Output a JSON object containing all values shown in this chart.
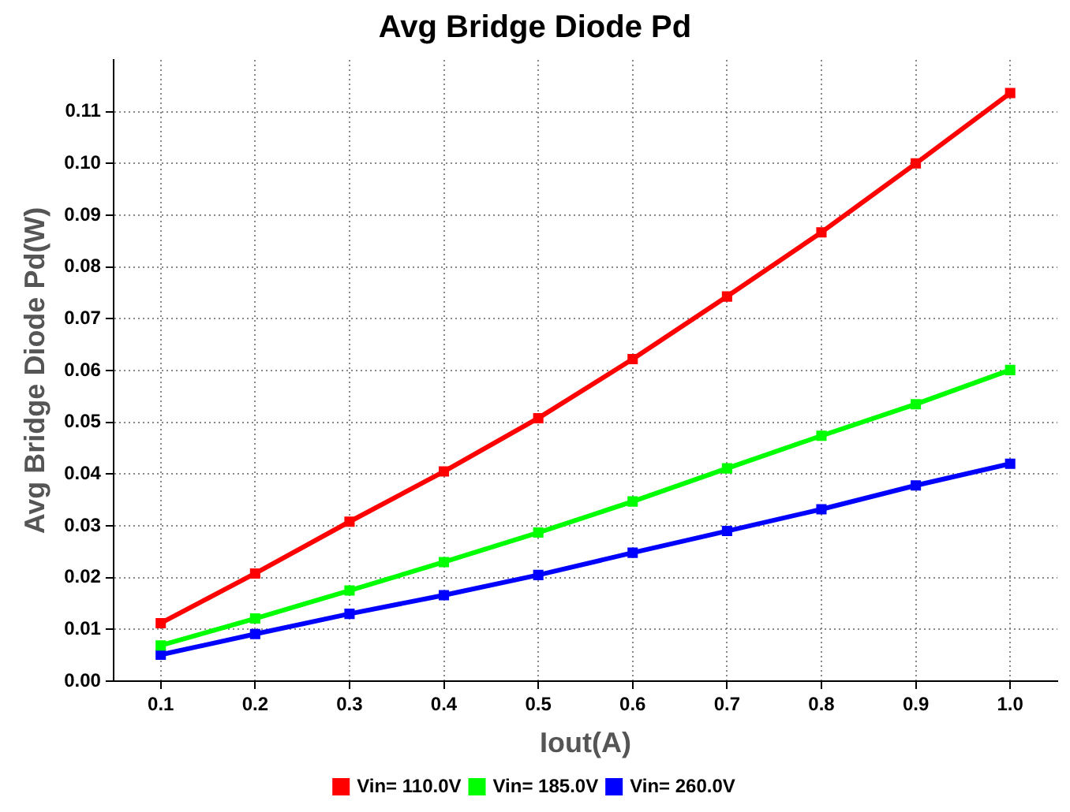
{
  "chart_data": {
    "type": "line",
    "title": "Avg Bridge Diode Pd",
    "xlabel": "Iout(A)",
    "ylabel": "Avg Bridge Diode Pd(W)",
    "x": [
      0.1,
      0.2,
      0.3,
      0.4,
      0.5,
      0.6,
      0.7,
      0.8,
      0.9,
      1.0
    ],
    "series": [
      {
        "name": "Vin= 110.0V",
        "color": "#ff0000",
        "values": [
          0.0112,
          0.0208,
          0.0308,
          0.0405,
          0.0508,
          0.0622,
          0.0743,
          0.0867,
          0.1,
          0.1136
        ]
      },
      {
        "name": "Vin= 185.0V",
        "color": "#00ff00",
        "values": [
          0.0069,
          0.0121,
          0.0175,
          0.023,
          0.0287,
          0.0347,
          0.0411,
          0.0474,
          0.0535,
          0.0601
        ]
      },
      {
        "name": "Vin= 260.0V",
        "color": "#0000ff",
        "values": [
          0.0051,
          0.0091,
          0.013,
          0.0166,
          0.0205,
          0.0248,
          0.029,
          0.0332,
          0.0378,
          0.042
        ]
      }
    ],
    "xlim": [
      0.05,
      1.05
    ],
    "xticks": [
      0.1,
      0.2,
      0.3,
      0.4,
      0.5,
      0.6,
      0.7,
      0.8,
      0.9,
      {
        "value": 1.0,
        "label": "1.0"
      }
    ],
    "ylim": [
      0,
      0.12
    ],
    "yticks": [
      {
        "value": 0,
        "label": "0.00"
      },
      {
        "value": 0.01,
        "label": "0.01"
      },
      {
        "value": 0.02,
        "label": "0.02"
      },
      {
        "value": 0.03,
        "label": "0.03"
      },
      {
        "value": 0.04,
        "label": "0.04"
      },
      {
        "value": 0.05,
        "label": "0.05"
      },
      {
        "value": 0.06,
        "label": "0.06"
      },
      {
        "value": 0.07,
        "label": "0.07"
      },
      {
        "value": 0.08,
        "label": "0.08"
      },
      {
        "value": 0.09,
        "label": "0.09"
      },
      {
        "value": 0.1,
        "label": "0.10"
      },
      {
        "value": 0.11,
        "label": "0.11"
      }
    ],
    "grid": true,
    "legend": "bottom",
    "marker": "square",
    "line_style": "solid"
  }
}
